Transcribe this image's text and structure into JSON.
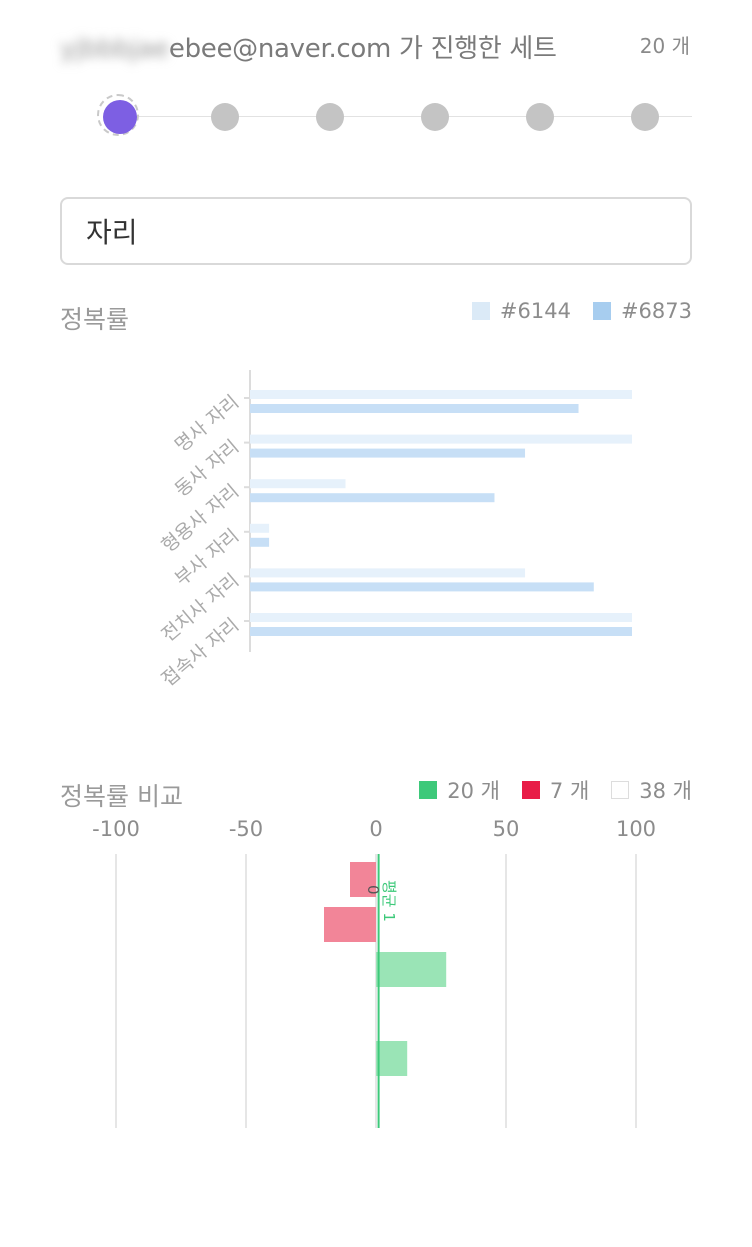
{
  "header": {
    "email_hidden": "yjbbbjae",
    "email_visible": "ebee@naver.com",
    "email_suffix": " 가 진행한 세트",
    "count": "20 개"
  },
  "stepper": {
    "steps": 6,
    "active_index": 0,
    "active_color": "#7d5fe3",
    "inactive_color": "#c4c4c4"
  },
  "search": {
    "value": "자리"
  },
  "accuracy": {
    "title": "정복률",
    "legend": [
      {
        "label": "#6144",
        "color": "#dbeaf7"
      },
      {
        "label": "#6873",
        "color": "#a7cdef"
      }
    ]
  },
  "comparison": {
    "title": "정복률 비교",
    "legend": [
      {
        "label": "20 개",
        "color": "#3dc97a"
      },
      {
        "label": "7 개",
        "color": "#e81c47"
      },
      {
        "label": "38 개",
        "color": "#ffffff"
      }
    ]
  },
  "chart_data": [
    {
      "type": "bar",
      "orientation": "horizontal",
      "categories": [
        "명사 자리",
        "동사 자리",
        "형용사 자리",
        "부사 자리",
        "전치사 자리",
        "접속사 자리"
      ],
      "series": [
        {
          "name": "#6144",
          "values": [
            100,
            100,
            25,
            5,
            72,
            100
          ],
          "color": "#e6f1fb"
        },
        {
          "name": "#6873",
          "values": [
            86,
            72,
            64,
            5,
            90,
            100
          ],
          "color": "#c7dff6"
        }
      ],
      "xlim": [
        0,
        100
      ]
    },
    {
      "type": "bar",
      "orientation": "horizontal",
      "xlim": [
        -100,
        100
      ],
      "x_ticks": [
        "-100",
        "-50",
        "0",
        "50",
        "100"
      ],
      "bars": [
        {
          "value": -10,
          "color": "#f28598"
        },
        {
          "value": -20,
          "color": "#f28598"
        },
        {
          "value": 27,
          "color": "#9ae4b6"
        },
        {
          "value": 0,
          "color": "#9ae4b6"
        },
        {
          "value": 12,
          "color": "#9ae4b6"
        }
      ],
      "average_line": {
        "value": 1,
        "label": "평균 1",
        "color": "#3dc97a"
      },
      "zero_label": "0"
    }
  ]
}
